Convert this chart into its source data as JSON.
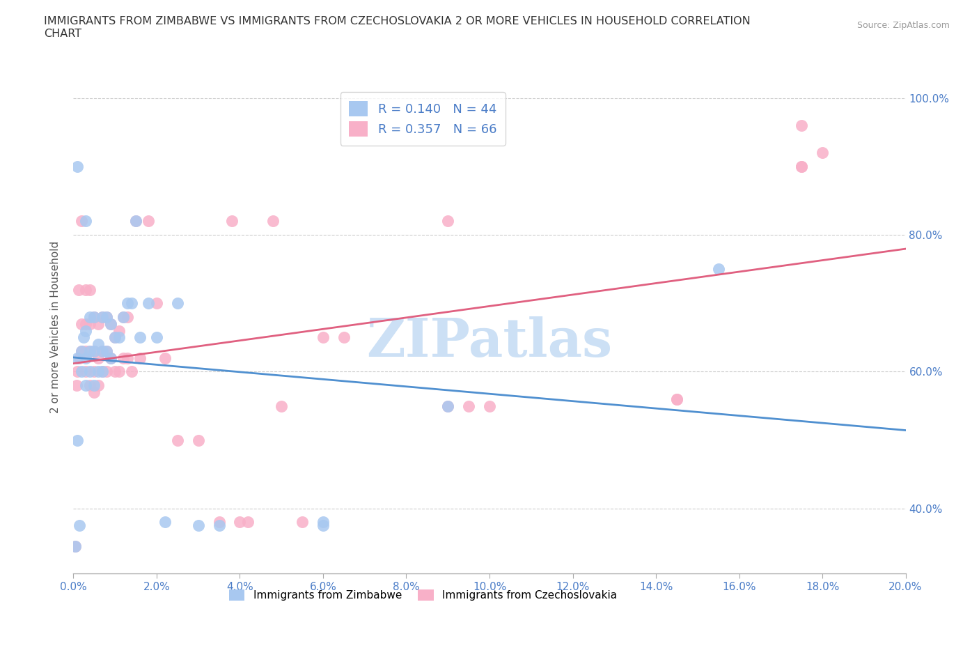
{
  "title": "IMMIGRANTS FROM ZIMBABWE VS IMMIGRANTS FROM CZECHOSLOVAKIA 2 OR MORE VEHICLES IN HOUSEHOLD CORRELATION\nCHART",
  "source": "Source: ZipAtlas.com",
  "legend_label1": "Immigrants from Zimbabwe",
  "legend_label2": "Immigrants from Czechoslovakia",
  "R_zimbabwe": 0.14,
  "N_zimbabwe": 44,
  "R_czechoslovakia": 0.357,
  "N_czechoslovakia": 66,
  "color_zimbabwe": "#a8c8f0",
  "color_czechoslovakia": "#f8b0c8",
  "line_color_zimbabwe": "#5090d0",
  "line_color_czechoslovakia": "#e06080",
  "watermark_color": "#cce0f5",
  "background_color": "#ffffff",
  "xmin": 0.0,
  "xmax": 0.2,
  "ymin": 0.305,
  "ymax": 1.025,
  "zimbabwe_x": [
    0.0005,
    0.001,
    0.001,
    0.001,
    0.0015,
    0.002,
    0.002,
    0.0025,
    0.003,
    0.003,
    0.003,
    0.003,
    0.004,
    0.004,
    0.004,
    0.005,
    0.005,
    0.005,
    0.006,
    0.006,
    0.007,
    0.007,
    0.007,
    0.008,
    0.008,
    0.009,
    0.009,
    0.01,
    0.011,
    0.012,
    0.013,
    0.014,
    0.015,
    0.016,
    0.018,
    0.02,
    0.022,
    0.025,
    0.03,
    0.035,
    0.06,
    0.06,
    0.09,
    0.155
  ],
  "zimbabwe_y": [
    0.345,
    0.9,
    0.62,
    0.5,
    0.375,
    0.6,
    0.63,
    0.65,
    0.58,
    0.62,
    0.66,
    0.82,
    0.6,
    0.63,
    0.68,
    0.58,
    0.63,
    0.68,
    0.6,
    0.64,
    0.6,
    0.63,
    0.68,
    0.63,
    0.68,
    0.62,
    0.67,
    0.65,
    0.65,
    0.68,
    0.7,
    0.7,
    0.82,
    0.65,
    0.7,
    0.65,
    0.38,
    0.7,
    0.375,
    0.375,
    0.375,
    0.38,
    0.55,
    0.75
  ],
  "czechoslovakia_x": [
    0.0005,
    0.0008,
    0.001,
    0.0012,
    0.0015,
    0.002,
    0.002,
    0.002,
    0.003,
    0.003,
    0.003,
    0.003,
    0.004,
    0.004,
    0.004,
    0.004,
    0.005,
    0.005,
    0.005,
    0.005,
    0.006,
    0.006,
    0.006,
    0.007,
    0.007,
    0.007,
    0.008,
    0.008,
    0.008,
    0.009,
    0.009,
    0.01,
    0.01,
    0.011,
    0.011,
    0.012,
    0.012,
    0.013,
    0.013,
    0.014,
    0.015,
    0.016,
    0.018,
    0.02,
    0.022,
    0.025,
    0.03,
    0.035,
    0.038,
    0.04,
    0.042,
    0.048,
    0.05,
    0.055,
    0.06,
    0.065,
    0.09,
    0.09,
    0.095,
    0.1,
    0.145,
    0.145,
    0.175,
    0.175,
    0.175,
    0.18
  ],
  "czechoslovakia_y": [
    0.345,
    0.58,
    0.6,
    0.72,
    0.62,
    0.63,
    0.67,
    0.82,
    0.6,
    0.63,
    0.67,
    0.72,
    0.58,
    0.63,
    0.67,
    0.72,
    0.57,
    0.6,
    0.63,
    0.68,
    0.58,
    0.62,
    0.67,
    0.6,
    0.63,
    0.68,
    0.6,
    0.63,
    0.68,
    0.62,
    0.67,
    0.6,
    0.65,
    0.6,
    0.66,
    0.62,
    0.68,
    0.62,
    0.68,
    0.6,
    0.82,
    0.62,
    0.82,
    0.7,
    0.62,
    0.5,
    0.5,
    0.38,
    0.82,
    0.38,
    0.38,
    0.82,
    0.55,
    0.38,
    0.65,
    0.65,
    0.55,
    0.82,
    0.55,
    0.55,
    0.56,
    0.56,
    0.96,
    0.9,
    0.9,
    0.92
  ]
}
